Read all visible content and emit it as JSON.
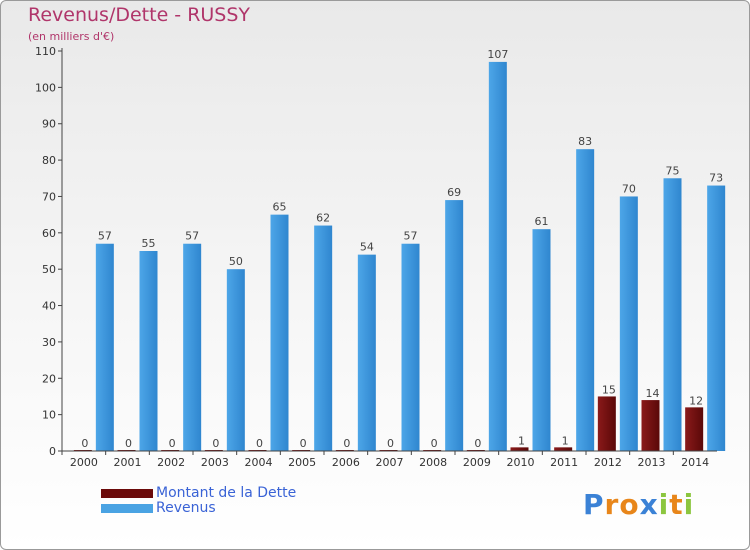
{
  "chart_data": {
    "type": "bar",
    "title": "Revenus/Dette - RUSSY",
    "subtitle": "(en milliers d'€)",
    "categories": [
      "2000",
      "2001",
      "2002",
      "2003",
      "2004",
      "2005",
      "2006",
      "2007",
      "2008",
      "2009",
      "2010",
      "2011",
      "2012",
      "2013",
      "2014"
    ],
    "series": [
      {
        "name": "Montant de la Dette",
        "color": "#6b0a0a",
        "values": [
          0,
          0,
          0,
          0,
          0,
          0,
          0,
          0,
          0,
          0,
          1,
          1,
          15,
          14,
          12
        ]
      },
      {
        "name": "Revenus",
        "color": "#4aa3e3",
        "values": [
          57,
          55,
          57,
          50,
          65,
          62,
          54,
          57,
          69,
          107,
          61,
          83,
          70,
          75,
          73
        ]
      }
    ],
    "ylim": [
      0,
      110
    ],
    "yticks": [
      0,
      10,
      20,
      30,
      40,
      50,
      60,
      70,
      80,
      90,
      100,
      110
    ],
    "grid": false,
    "legend": "bottom-left"
  },
  "legend": {
    "items": [
      {
        "label": "Montant de la Dette",
        "color": "#6b0a0a"
      },
      {
        "label": "Revenus",
        "color": "#4aa3e3"
      }
    ]
  },
  "logo": {
    "letters": [
      "P",
      "r",
      "o",
      "x",
      "i",
      "t",
      "i"
    ],
    "colors": [
      "#3b82d6",
      "#e8861a",
      "#e8861a",
      "#3b82d6",
      "#8cc63f",
      "#e8861a",
      "#8cc63f"
    ]
  }
}
